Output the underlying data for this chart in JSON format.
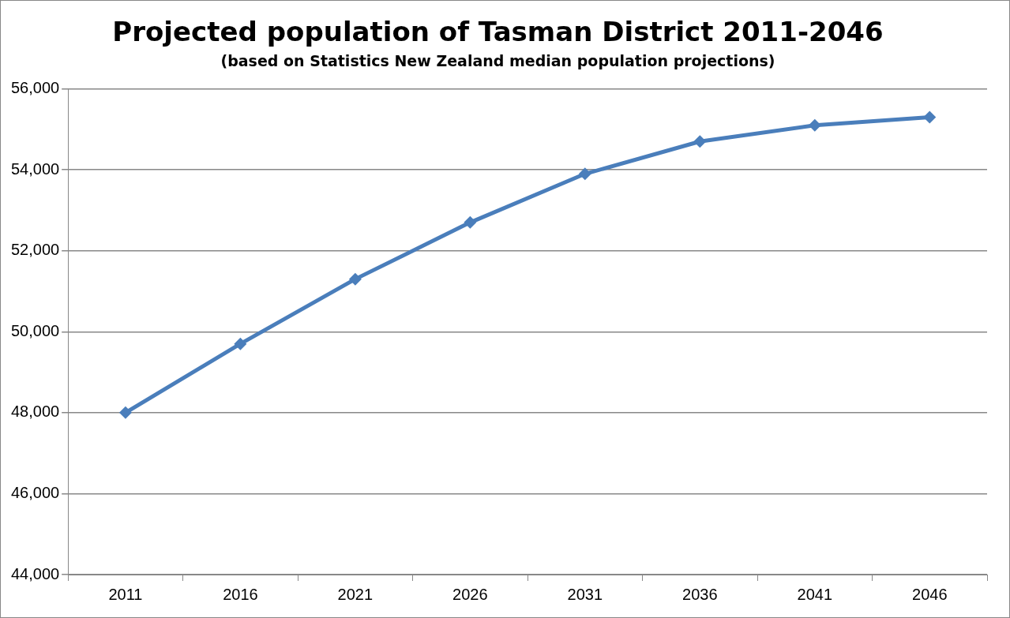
{
  "chart_data": {
    "type": "line",
    "title": "Projected population of Tasman District 2011-2046",
    "subtitle": "(based on Statistics New Zealand median population projections)",
    "categories": [
      "2011",
      "2016",
      "2021",
      "2026",
      "2031",
      "2036",
      "2041",
      "2046"
    ],
    "series": [
      {
        "color": "#4a7ebb",
        "values": [
          48000,
          49700,
          51300,
          52700,
          53900,
          54700,
          55100,
          55300
        ]
      }
    ],
    "ylim": [
      44000,
      56000
    ],
    "yticks": [
      {
        "value": 44000,
        "label": "44,000"
      },
      {
        "value": 46000,
        "label": "46,000"
      },
      {
        "value": 48000,
        "label": "48,000"
      },
      {
        "value": 50000,
        "label": "50,000"
      },
      {
        "value": 52000,
        "label": "52,000"
      },
      {
        "value": 54000,
        "label": "54,000"
      },
      {
        "value": 56000,
        "label": "56,000"
      }
    ],
    "grid": "y",
    "legend": false,
    "marker": "diamond",
    "line_style": "solid"
  }
}
